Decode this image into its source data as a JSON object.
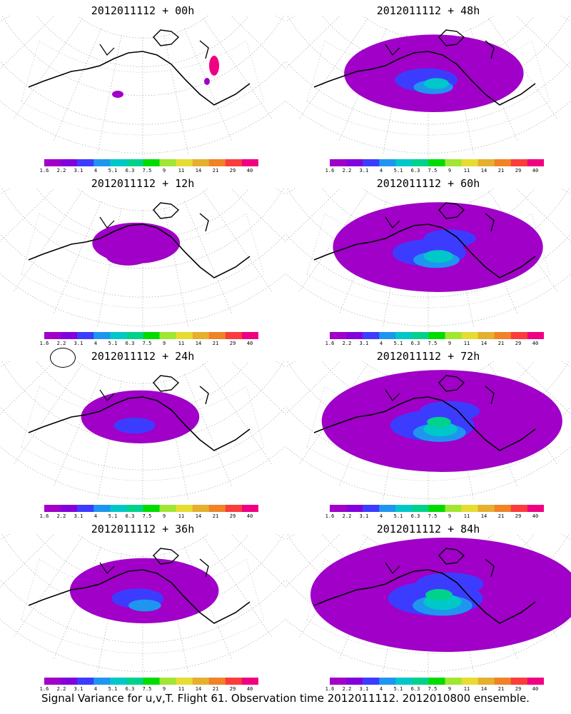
{
  "panels": [
    {
      "title": "2012011112 + 00h",
      "hour": 0
    },
    {
      "title": "2012011112 + 48h",
      "hour": 48
    },
    {
      "title": "2012011112 + 12h",
      "hour": 12
    },
    {
      "title": "2012011112 + 60h",
      "hour": 60
    },
    {
      "title": "2012011112 + 24h",
      "hour": 24
    },
    {
      "title": "2012011112 + 72h",
      "hour": 72
    },
    {
      "title": "2012011112 + 36h",
      "hour": 36
    },
    {
      "title": "2012011112 + 84h",
      "hour": 84
    }
  ],
  "colorbar": {
    "labels": [
      "1.6",
      "2.2",
      "3.1",
      "4",
      "5.1",
      "6.3",
      "7.5",
      "9",
      "11",
      "14",
      "21",
      "29",
      "40"
    ],
    "colors": [
      "#a000c8",
      "#8200dc",
      "#3c3cff",
      "#1e96f0",
      "#00c8c8",
      "#00d28c",
      "#00dc00",
      "#a0e632",
      "#e6dc32",
      "#e6af2d",
      "#f08228",
      "#fa3c3c",
      "#f00082"
    ]
  },
  "footer": "Signal Variance for u,v,T. Flight 61. Observation time 2012011112. 2012010800 ensemble."
}
